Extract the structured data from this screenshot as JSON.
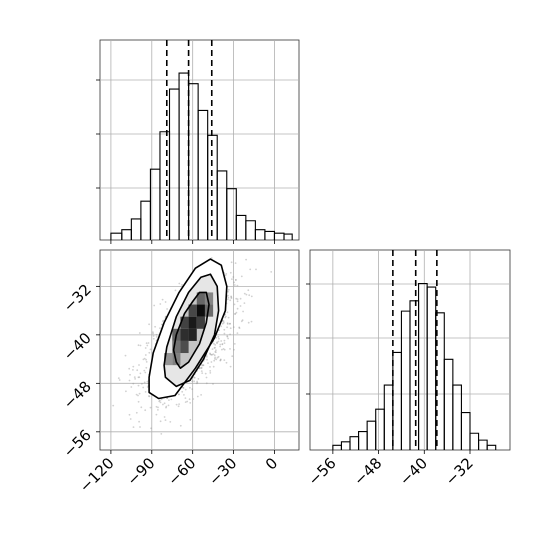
{
  "chart_data": [
    {
      "type": "histogram",
      "panel": "x-marginal",
      "xlim": [
        -128,
        18
      ],
      "grid": true,
      "y_tick_labels_shown": false,
      "bins": [
        [
          -120,
          -112,
          0.01
        ],
        [
          -112,
          -105,
          0.03
        ],
        [
          -105,
          -98,
          0.09
        ],
        [
          -98,
          -91,
          0.19
        ],
        [
          -91,
          -84,
          0.37
        ],
        [
          -84,
          -77,
          0.58
        ],
        [
          -77,
          -70,
          0.82
        ],
        [
          -70,
          -63,
          0.91
        ],
        [
          -63,
          -56,
          0.85
        ],
        [
          -56,
          -49,
          0.7
        ],
        [
          -49,
          -42,
          0.56
        ],
        [
          -42,
          -35,
          0.36
        ],
        [
          -35,
          -28,
          0.26
        ],
        [
          -28,
          -21,
          0.11
        ],
        [
          -21,
          -14,
          0.08
        ],
        [
          -14,
          -7,
          0.03
        ],
        [
          -7,
          0,
          0.02
        ],
        [
          0,
          7,
          0.01
        ],
        [
          7,
          13,
          0.005
        ]
      ],
      "quantile_lines": [
        -79,
        -63,
        -46
      ]
    },
    {
      "type": "heatmap",
      "panel": "joint",
      "xlim": [
        -128,
        18
      ],
      "ylim": [
        -59,
        -26
      ],
      "grid": true,
      "x_ticks": [
        -120,
        -90,
        -60,
        -30,
        0
      ],
      "x_tick_labels": [
        "−120",
        "−90",
        "−60",
        "−30",
        "0"
      ],
      "y_ticks": [
        -32,
        -40,
        -48,
        -56
      ],
      "y_tick_labels": [
        "−32",
        "−40",
        "−48",
        "−56"
      ],
      "distribution": {
        "mean_x": -63,
        "mean_y": -41.5,
        "sd_x": 17,
        "sd_y": 4.8,
        "corr": 0.62
      },
      "density_cells": [
        {
          "x": [
            -75,
            -69
          ],
          "y": [
            -43,
            -41
          ],
          "level": 0.55
        },
        {
          "x": [
            -75,
            -69
          ],
          "y": [
            -41,
            -39
          ],
          "level": 0.62
        },
        {
          "x": [
            -69,
            -63
          ],
          "y": [
            -43,
            -41
          ],
          "level": 0.7
        },
        {
          "x": [
            -69,
            -63
          ],
          "y": [
            -41,
            -39
          ],
          "level": 0.82
        },
        {
          "x": [
            -69,
            -63
          ],
          "y": [
            -39,
            -37
          ],
          "level": 0.74
        },
        {
          "x": [
            -63,
            -57
          ],
          "y": [
            -41,
            -39
          ],
          "level": 0.86
        },
        {
          "x": [
            -63,
            -57
          ],
          "y": [
            -39,
            -37
          ],
          "level": 0.9
        },
        {
          "x": [
            -63,
            -57
          ],
          "y": [
            -37,
            -35
          ],
          "level": 0.72
        },
        {
          "x": [
            -57,
            -51
          ],
          "y": [
            -39,
            -37
          ],
          "level": 0.76
        },
        {
          "x": [
            -57,
            -51
          ],
          "y": [
            -37,
            -35
          ],
          "level": 0.95
        },
        {
          "x": [
            -57,
            -51
          ],
          "y": [
            -35,
            -33
          ],
          "level": 0.6
        },
        {
          "x": [
            -51,
            -45
          ],
          "y": [
            -37,
            -35
          ],
          "level": 0.58
        },
        {
          "x": [
            -81,
            -75
          ],
          "y": [
            -45,
            -43
          ],
          "level": 0.42
        },
        {
          "x": [
            -75,
            -69
          ],
          "y": [
            -45,
            -43
          ],
          "level": 0.5
        },
        {
          "x": [
            -51,
            -45
          ],
          "y": [
            -35,
            -33
          ],
          "level": 0.48
        }
      ],
      "contours": [
        {
          "name": "inner",
          "points": [
            [
              -72,
              -44.5
            ],
            [
              -69,
              -45.5
            ],
            [
              -63,
              -44.5
            ],
            [
              -55,
              -41.5
            ],
            [
              -50,
              -38
            ],
            [
              -48,
              -35
            ],
            [
              -50,
              -33
            ],
            [
              -55,
              -33
            ],
            [
              -60,
              -34.5
            ],
            [
              -66,
              -36.5
            ],
            [
              -72,
              -40
            ],
            [
              -74,
              -42.5
            ]
          ]
        },
        {
          "name": "middle",
          "points": [
            [
              -80,
              -47
            ],
            [
              -72,
              -48.5
            ],
            [
              -62,
              -47.5
            ],
            [
              -52,
              -44
            ],
            [
              -44,
              -40
            ],
            [
              -41,
              -36
            ],
            [
              -42,
              -32
            ],
            [
              -47,
              -30
            ],
            [
              -54,
              -30.5
            ],
            [
              -63,
              -33
            ],
            [
              -72,
              -37
            ],
            [
              -79,
              -42
            ],
            [
              -81,
              -45
            ]
          ]
        },
        {
          "name": "outer",
          "points": [
            [
              -92,
              -49.5
            ],
            [
              -85,
              -50.5
            ],
            [
              -73,
              -50
            ],
            [
              -58,
              -45.5
            ],
            [
              -44,
              -40.5
            ],
            [
              -36,
              -36
            ],
            [
              -35,
              -32
            ],
            [
              -39,
              -28.5
            ],
            [
              -47,
              -27.5
            ],
            [
              -58,
              -29
            ],
            [
              -70,
              -33
            ],
            [
              -81,
              -38
            ],
            [
              -89,
              -43
            ],
            [
              -92,
              -47
            ]
          ]
        }
      ]
    },
    {
      "type": "histogram",
      "panel": "y-marginal",
      "xlim": [
        -60,
        -25
      ],
      "grid": true,
      "x_ticks": [
        -56,
        -48,
        -40,
        -32
      ],
      "x_tick_labels": [
        "−56",
        "−48",
        "−40",
        "−32"
      ],
      "y_tick_labels_shown": false,
      "bins": [
        [
          -56,
          -54.5,
          0.01
        ],
        [
          -54.5,
          -53,
          0.03
        ],
        [
          -53,
          -51.5,
          0.06
        ],
        [
          -51.5,
          -50,
          0.09
        ],
        [
          -50,
          -48.5,
          0.15
        ],
        [
          -48.5,
          -47,
          0.22
        ],
        [
          -47,
          -45.5,
          0.36
        ],
        [
          -45.5,
          -44,
          0.55
        ],
        [
          -44,
          -42.5,
          0.79
        ],
        [
          -42.5,
          -41,
          0.85
        ],
        [
          -41,
          -39.5,
          0.95
        ],
        [
          -39.5,
          -38,
          0.93
        ],
        [
          -38,
          -36.5,
          0.78
        ],
        [
          -36.5,
          -35,
          0.51
        ],
        [
          -35,
          -33.5,
          0.36
        ],
        [
          -33.5,
          -32,
          0.2
        ],
        [
          -32,
          -30.5,
          0.08
        ],
        [
          -30.5,
          -29,
          0.04
        ],
        [
          -29,
          -27.5,
          0.01
        ]
      ],
      "quantile_lines": [
        -45.5,
        -41.5,
        -37.8
      ]
    }
  ]
}
